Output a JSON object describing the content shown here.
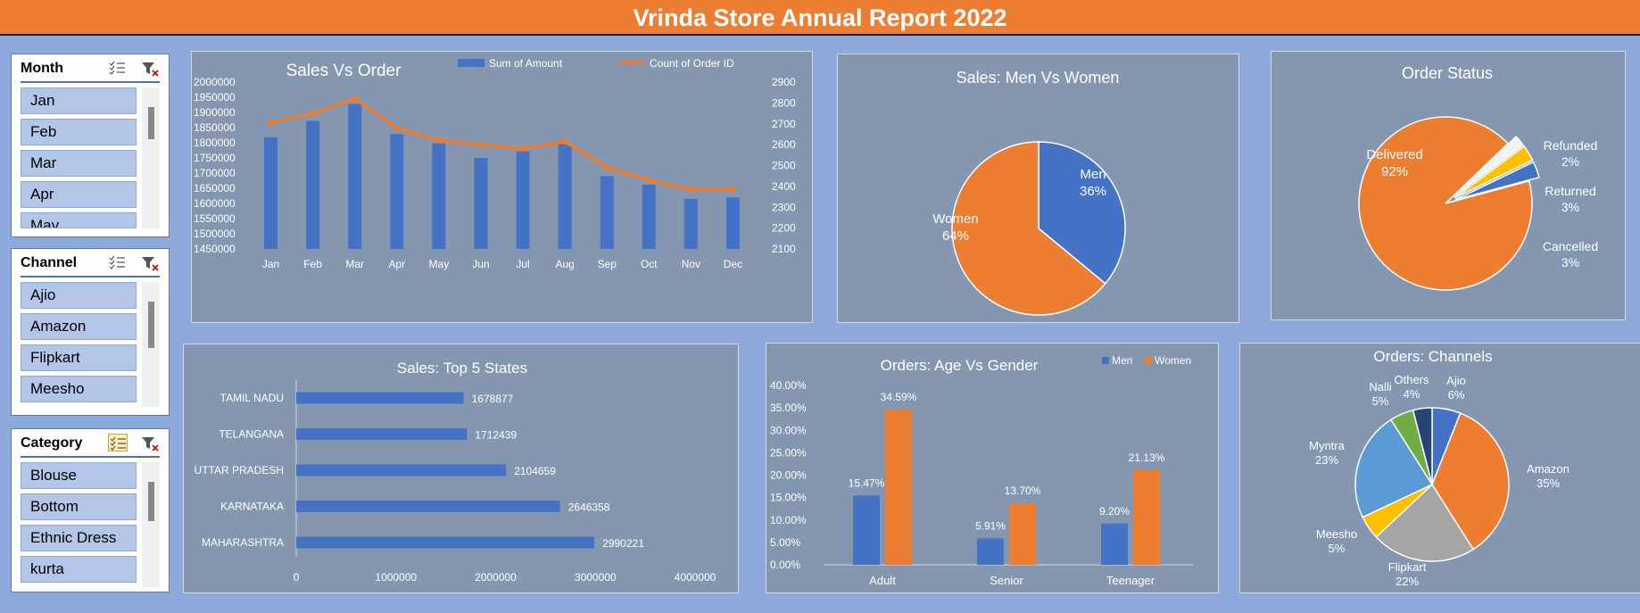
{
  "report": {
    "title": "Vrinda Store Annual Report 2022"
  },
  "slicers": {
    "month": {
      "title": "Month",
      "items": [
        "Jan",
        "Feb",
        "Mar",
        "Apr",
        "May"
      ]
    },
    "channel": {
      "title": "Channel",
      "items": [
        "Ajio",
        "Amazon",
        "Flipkart",
        "Meesho"
      ]
    },
    "category": {
      "title": "Category",
      "items": [
        "Blouse",
        "Bottom",
        "Ethnic Dress",
        "kurta"
      ]
    }
  },
  "colors": {
    "blue": "#4472c4",
    "orange": "#ed7d31",
    "gray": "#a5a5a5",
    "yellow": "#ffc000",
    "lightblue": "#5b9bd5",
    "green": "#70ad47",
    "navy": "#264478"
  },
  "chart_data": [
    {
      "type": "bar",
      "title": "Sales Vs Order",
      "categories": [
        "Jan",
        "Feb",
        "Mar",
        "Apr",
        "May",
        "Jun",
        "Jul",
        "Aug",
        "Sep",
        "Oct",
        "Nov",
        "Dec"
      ],
      "series": [
        {
          "name": "Sum of Amount",
          "axis": "left",
          "values": [
            1818000,
            1872000,
            1928000,
            1828000,
            1798000,
            1750000,
            1772000,
            1798000,
            1690000,
            1662000,
            1615000,
            1620000
          ]
        },
        {
          "name": "Count of Order ID",
          "type": "line",
          "axis": "right",
          "values": [
            2705,
            2750,
            2820,
            2680,
            2620,
            2600,
            2580,
            2615,
            2490,
            2430,
            2385,
            2385
          ]
        }
      ],
      "y_left_ticks": [
        "2000000",
        "1950000",
        "1900000",
        "1850000",
        "1800000",
        "1750000",
        "1700000",
        "1650000",
        "1600000",
        "1550000",
        "1500000",
        "1450000"
      ],
      "y_right_ticks": [
        "2900",
        "2800",
        "2700",
        "2600",
        "2500",
        "2400",
        "2300",
        "2200",
        "2100"
      ],
      "ylim_left": [
        1450000,
        2000000
      ],
      "ylim_right": [
        2100,
        2900
      ],
      "legend": "top"
    },
    {
      "type": "pie",
      "title": "Sales: Men Vs Women",
      "labels": [
        "Men",
        "Women"
      ],
      "values": [
        36,
        64
      ],
      "value_labels": [
        "36%",
        "64%"
      ]
    },
    {
      "type": "pie",
      "title": "Order Status",
      "labels": [
        "Delivered",
        "Refunded",
        "Returned",
        "Cancelled"
      ],
      "values": [
        92,
        2,
        3,
        3
      ],
      "value_labels": [
        "92%",
        "2%",
        "3%",
        "3%"
      ]
    },
    {
      "type": "bar",
      "orientation": "horizontal",
      "title": "Sales: Top 5 States",
      "categories": [
        "TAMIL NADU",
        "TELANGANA",
        "UTTAR PRADESH",
        "KARNATAKA",
        "MAHARASHTRA"
      ],
      "values": [
        1678877,
        1712439,
        2104659,
        2646358,
        2990221
      ],
      "x_ticks": [
        "0",
        "1000000",
        "2000000",
        "3000000",
        "4000000"
      ],
      "xlim": [
        0,
        4000000
      ]
    },
    {
      "type": "bar",
      "title": "Orders: Age Vs Gender",
      "categories": [
        "Adult",
        "Senior",
        "Teenager"
      ],
      "series": [
        {
          "name": "Men",
          "values": [
            15.47,
            5.91,
            9.2
          ],
          "value_labels": [
            "15.47%",
            "5.91%",
            "9.20%"
          ]
        },
        {
          "name": "Women",
          "values": [
            34.59,
            13.7,
            21.13
          ],
          "value_labels": [
            "34.59%",
            "13.70%",
            "21.13%"
          ]
        }
      ],
      "y_ticks": [
        "40.00%",
        "35.00%",
        "30.00%",
        "25.00%",
        "20.00%",
        "15.00%",
        "10.00%",
        "5.00%",
        "0.00%"
      ],
      "ylim": [
        0,
        40
      ],
      "legend": "top-right"
    },
    {
      "type": "pie",
      "title": "Orders: Channels",
      "labels": [
        "Ajio",
        "Amazon",
        "Flipkart",
        "Meesho",
        "Myntra",
        "Nalli",
        "Others"
      ],
      "values": [
        6,
        35,
        22,
        5,
        23,
        5,
        4
      ],
      "value_labels": [
        "6%",
        "35%",
        "22%",
        "5%",
        "23%",
        "5%",
        "4%"
      ]
    }
  ]
}
